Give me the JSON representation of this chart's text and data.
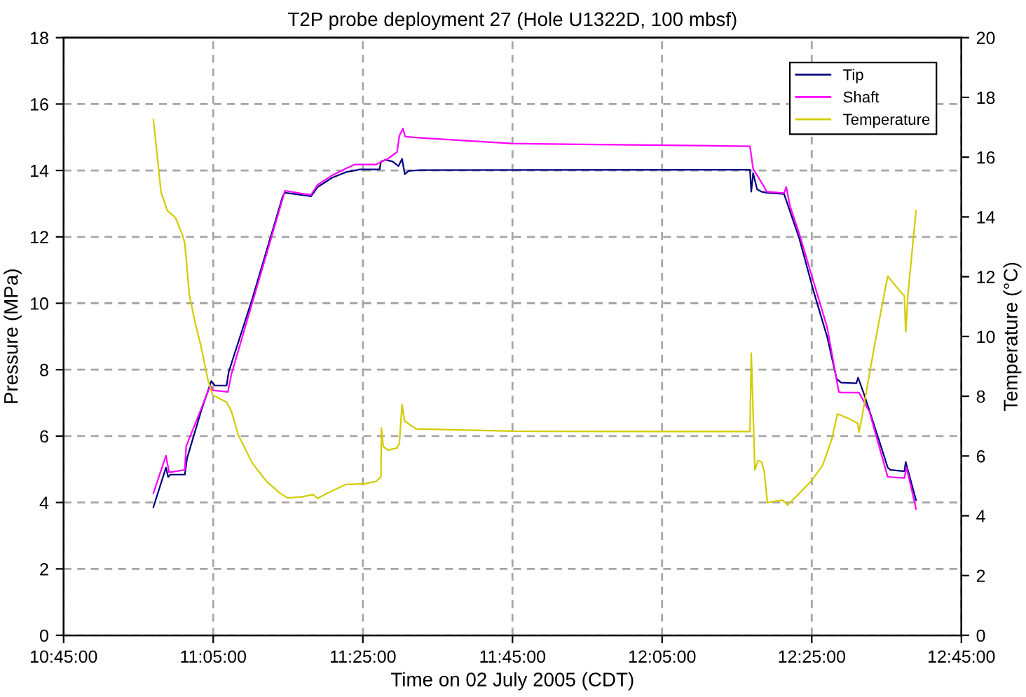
{
  "chart_data": {
    "type": "line",
    "title": "T2P probe deployment 27 (Hole U1322D, 100 mbsf)",
    "xlabel": "Time on 02 July 2005 (CDT)",
    "ylabel": "Pressure (MPa)",
    "y2label": "Temperature (°C)",
    "xlim": [
      10.75,
      12.75
    ],
    "xticks": [
      {
        "value": 10.75,
        "label": "10:45:00"
      },
      {
        "value": 11.0833,
        "label": "11:05:00"
      },
      {
        "value": 11.4167,
        "label": "11:25:00"
      },
      {
        "value": 11.75,
        "label": "11:45:00"
      },
      {
        "value": 12.0833,
        "label": "12:05:00"
      },
      {
        "value": 12.4167,
        "label": "12:25:00"
      },
      {
        "value": 12.75,
        "label": "12:45:00"
      }
    ],
    "ylim": [
      0,
      18
    ],
    "yticks": [
      0,
      2,
      4,
      6,
      8,
      10,
      12,
      14,
      16,
      18
    ],
    "y2lim": [
      0,
      20
    ],
    "y2ticks": [
      0,
      2,
      4,
      6,
      8,
      10,
      12,
      14,
      16,
      18,
      20
    ],
    "grid": true,
    "legend": "top right",
    "marker": "none",
    "line_style": "solid",
    "series": [
      {
        "name": "Tip",
        "color": "#000080",
        "x": [
          10.95,
          10.978,
          10.983,
          10.988,
          11.02,
          11.025,
          11.056,
          11.079,
          11.087,
          11.113,
          11.118,
          11.17,
          11.238,
          11.243,
          11.264,
          11.301,
          11.316,
          11.348,
          11.379,
          11.41,
          11.454,
          11.457,
          11.467,
          11.483,
          11.496,
          11.504,
          11.51,
          11.519,
          11.545,
          12.279,
          12.282,
          12.286,
          12.295,
          12.305,
          12.316,
          12.355,
          12.389,
          12.42,
          12.451,
          12.472,
          12.482,
          12.516,
          12.52,
          12.534,
          12.566,
          12.586,
          12.592,
          12.623,
          12.626,
          12.649
        ],
        "values": [
          3.86,
          5.05,
          4.77,
          4.84,
          4.84,
          5.33,
          6.74,
          7.66,
          7.52,
          7.52,
          7.94,
          10.12,
          13.22,
          13.33,
          13.29,
          13.22,
          13.5,
          13.78,
          13.95,
          14.03,
          14.03,
          14.27,
          14.32,
          14.27,
          14.13,
          14.35,
          13.89,
          13.99,
          14.01,
          14.02,
          13.36,
          13.92,
          13.43,
          13.36,
          13.33,
          13.29,
          11.95,
          10.4,
          8.99,
          7.73,
          7.61,
          7.59,
          7.76,
          7.23,
          5.9,
          5.05,
          4.98,
          4.94,
          5.22,
          4.07
        ]
      },
      {
        "name": "Shaft",
        "color": "#ff00ff",
        "x": [
          10.95,
          10.978,
          10.985,
          11.02,
          11.023,
          11.077,
          11.082,
          11.116,
          11.124,
          11.238,
          11.243,
          11.301,
          11.316,
          11.348,
          11.379,
          11.399,
          11.446,
          11.472,
          11.493,
          11.498,
          11.506,
          11.511,
          11.545,
          11.748,
          12.279,
          12.286,
          12.295,
          12.311,
          12.316,
          12.355,
          12.36,
          12.368,
          12.389,
          12.42,
          12.451,
          12.477,
          12.482,
          12.522,
          12.545,
          12.586,
          12.623,
          12.628,
          12.649
        ],
        "values": [
          4.28,
          5.41,
          4.91,
          4.98,
          5.69,
          7.52,
          7.38,
          7.33,
          7.87,
          13.15,
          13.39,
          13.26,
          13.57,
          13.85,
          14.06,
          14.18,
          14.18,
          14.35,
          14.56,
          15.05,
          15.26,
          15.02,
          14.98,
          14.81,
          14.73,
          14.06,
          13.85,
          13.5,
          13.36,
          13.32,
          13.5,
          12.94,
          12.09,
          10.68,
          9.28,
          7.33,
          7.31,
          7.31,
          6.74,
          4.77,
          4.74,
          5.05,
          3.81
        ]
      },
      {
        "name": "Temperature",
        "color": "#d4cc00",
        "axis": "y2",
        "x": [
          10.95,
          10.967,
          10.981,
          10.999,
          11.014,
          11.02,
          11.03,
          11.043,
          11.056,
          11.071,
          11.082,
          11.113,
          11.124,
          11.139,
          11.17,
          11.202,
          11.233,
          11.249,
          11.28,
          11.306,
          11.316,
          11.337,
          11.379,
          11.42,
          11.446,
          11.457,
          11.458,
          11.462,
          11.472,
          11.493,
          11.498,
          11.504,
          11.509,
          11.535,
          11.748,
          12.076,
          12.279,
          12.282,
          12.29,
          12.297,
          12.305,
          12.311,
          12.318,
          12.336,
          12.352,
          12.363,
          12.389,
          12.415,
          12.441,
          12.461,
          12.474,
          12.498,
          12.519,
          12.522,
          12.529,
          12.545,
          12.566,
          12.586,
          12.607,
          12.623,
          12.626,
          12.631,
          12.649
        ],
        "values": [
          17.26,
          14.84,
          14.21,
          13.98,
          13.43,
          13.12,
          11.4,
          10.46,
          9.68,
          8.58,
          8.04,
          7.8,
          7.49,
          6.71,
          5.77,
          5.15,
          4.75,
          4.6,
          4.63,
          4.71,
          4.58,
          4.75,
          5.05,
          5.07,
          5.15,
          5.3,
          6.94,
          6.32,
          6.2,
          6.27,
          6.43,
          7.72,
          7.18,
          6.91,
          6.83,
          6.82,
          6.82,
          9.44,
          5.53,
          5.85,
          5.8,
          5.46,
          4.44,
          4.49,
          4.52,
          4.36,
          4.75,
          5.15,
          5.69,
          6.55,
          7.41,
          7.26,
          7.1,
          6.79,
          7.33,
          8.74,
          10.46,
          12.02,
          11.63,
          11.35,
          10.15,
          11.4,
          14.21
        ]
      }
    ]
  }
}
